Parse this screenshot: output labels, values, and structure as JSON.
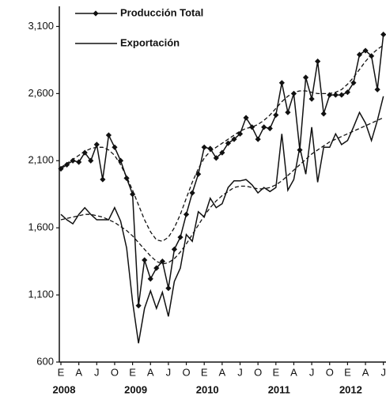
{
  "chart_data": {
    "type": "line",
    "categories": [
      "E",
      null,
      null,
      "A",
      null,
      null,
      "J",
      null,
      null,
      "O",
      null,
      null,
      "E",
      null,
      null,
      "A",
      null,
      null,
      "J",
      null,
      null,
      "O",
      null,
      null,
      "E",
      null,
      null,
      "A",
      null,
      null,
      "J",
      null,
      null,
      "O",
      null,
      null,
      "E",
      null,
      null,
      "A",
      null,
      null,
      "J",
      null,
      null,
      "O",
      null,
      null,
      "E",
      null,
      null,
      "A",
      null,
      null,
      "J"
    ],
    "year_labels": [
      "2008",
      "2009",
      "2010",
      "2011",
      "2012"
    ],
    "ylim": [
      600,
      3250
    ],
    "yticks": [
      {
        "value": 600,
        "label": "600"
      },
      {
        "value": 1100,
        "label": "1,100"
      },
      {
        "value": 1600,
        "label": "1,600"
      },
      {
        "value": 2100,
        "label": "2,100"
      },
      {
        "value": 2600,
        "label": "2,600"
      },
      {
        "value": 3100,
        "label": "3,100"
      }
    ],
    "legend": "top-left",
    "series": [
      {
        "name": "Producción Total",
        "color": "#111111",
        "marker": "diamond",
        "style": "solid",
        "values": [
          2040,
          2070,
          2100,
          2090,
          2160,
          2100,
          2220,
          1960,
          2290,
          2200,
          2100,
          1970,
          1850,
          1020,
          1360,
          1220,
          1300,
          1350,
          1150,
          1440,
          1530,
          1700,
          1860,
          2000,
          2200,
          2190,
          2120,
          2160,
          2230,
          2260,
          2300,
          2420,
          2350,
          2260,
          2350,
          2340,
          2440,
          2680,
          2460,
          2600,
          2180,
          2720,
          2560,
          2840,
          2450,
          2590,
          2590,
          2590,
          2610,
          2680,
          2890,
          2920,
          2880,
          2630,
          3040
        ]
      },
      {
        "name": "Exportación",
        "color": "#111111",
        "style": "solid",
        "values": [
          1700,
          1660,
          1630,
          1700,
          1750,
          1700,
          1660,
          1660,
          1660,
          1750,
          1650,
          1450,
          1050,
          740,
          1000,
          1130,
          1000,
          1120,
          940,
          1200,
          1300,
          1550,
          1500,
          1720,
          1680,
          1820,
          1750,
          1780,
          1900,
          1950,
          1950,
          1960,
          1920,
          1860,
          1900,
          1870,
          1900,
          2300,
          1880,
          1960,
          2200,
          2000,
          2350,
          1940,
          2200,
          2200,
          2300,
          2220,
          2250,
          2350,
          2460,
          2380,
          2250,
          2400,
          2580
        ]
      },
      {
        "color": "#111111",
        "style": "dashed",
        "values": [
          2050,
          2080,
          2110,
          2140,
          2170,
          2190,
          2200,
          2200,
          2180,
          2140,
          2070,
          1980,
          1880,
          1770,
          1660,
          1570,
          1510,
          1500,
          1530,
          1600,
          1700,
          1820,
          1940,
          2040,
          2120,
          2170,
          2200,
          2230,
          2260,
          2290,
          2320,
          2340,
          2350,
          2370,
          2400,
          2440,
          2490,
          2540,
          2580,
          2610,
          2620,
          2620,
          2610,
          2600,
          2600,
          2600,
          2610,
          2630,
          2670,
          2720,
          2780,
          2840,
          2890,
          2930,
          2960
        ]
      },
      {
        "color": "#111111",
        "style": "dashed",
        "values": [
          1660,
          1670,
          1680,
          1690,
          1700,
          1700,
          1690,
          1680,
          1660,
          1640,
          1610,
          1580,
          1540,
          1490,
          1440,
          1390,
          1350,
          1330,
          1340,
          1370,
          1420,
          1480,
          1550,
          1620,
          1690,
          1750,
          1800,
          1840,
          1870,
          1900,
          1910,
          1910,
          1900,
          1890,
          1890,
          1900,
          1920,
          1950,
          1990,
          2030,
          2070,
          2110,
          2150,
          2180,
          2210,
          2240,
          2260,
          2280,
          2300,
          2320,
          2340,
          2360,
          2380,
          2400,
          2420
        ]
      }
    ]
  }
}
